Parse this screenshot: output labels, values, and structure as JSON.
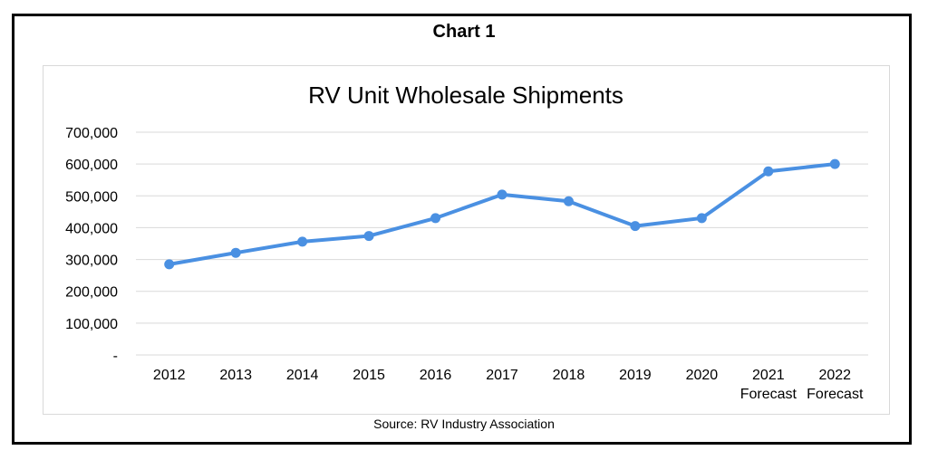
{
  "chart_label": "Chart 1",
  "source": "Source: RV Industry Association",
  "colors": {
    "line": "#4a90e2",
    "grid": "#d9d9d9",
    "text": "#000000"
  },
  "chart_data": {
    "type": "line",
    "title": "RV Unit Wholesale Shipments",
    "xlabel": "",
    "ylabel": "",
    "categories": [
      "2012",
      "2013",
      "2014",
      "2015",
      "2016",
      "2017",
      "2018",
      "2019",
      "2020",
      "2021",
      "2022"
    ],
    "category_sublabels": [
      "",
      "",
      "",
      "",
      "",
      "",
      "",
      "",
      "",
      "Forecast",
      "Forecast"
    ],
    "series": [
      {
        "values": [
          285000,
          321000,
          356000,
          374000,
          430000,
          504000,
          483000,
          405000,
          430000,
          577000,
          600000
        ]
      }
    ],
    "ylim": [
      0,
      700000
    ],
    "yticks": [
      0,
      100000,
      200000,
      300000,
      400000,
      500000,
      600000,
      700000
    ],
    "ytick_labels": [
      "-",
      "100,000",
      "200,000",
      "300,000",
      "400,000",
      "500,000",
      "600,000",
      "700,000"
    ],
    "grid": true,
    "legend": "none"
  }
}
